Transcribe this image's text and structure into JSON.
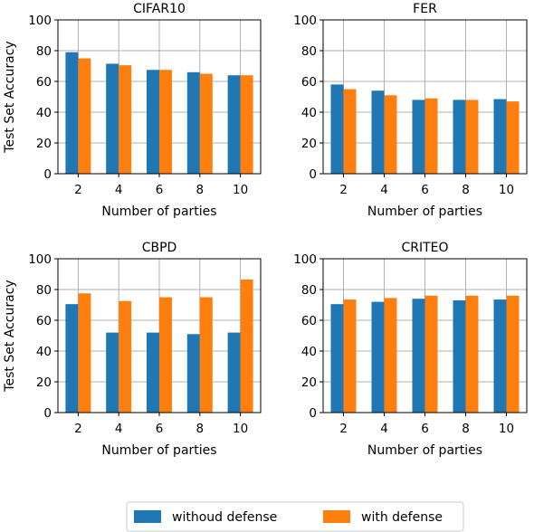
{
  "figure": {
    "legend": {
      "position": "bottom-center",
      "items": [
        {
          "label": "withoud defense",
          "color": "#1f77b4"
        },
        {
          "label": "with defense",
          "color": "#ff7f0e"
        }
      ]
    },
    "ylabel": "Test Set Accuracy",
    "xlabel": "Number of parties"
  },
  "chart_data": [
    {
      "type": "bar",
      "title": "CIFAR10",
      "categories": [
        "2",
        "4",
        "6",
        "8",
        "10"
      ],
      "xlabel": "Number of parties",
      "ylabel": "Test Set Accuracy",
      "ylim": [
        0,
        100
      ],
      "yticks": [
        0,
        20,
        40,
        60,
        80,
        100
      ],
      "grid": true,
      "series": [
        {
          "name": "withoud defense",
          "color": "#1f77b4",
          "values": [
            79,
            71.5,
            67.5,
            66,
            64
          ]
        },
        {
          "name": "with defense",
          "color": "#ff7f0e",
          "values": [
            75,
            70.5,
            67.5,
            65,
            64
          ]
        }
      ]
    },
    {
      "type": "bar",
      "title": "FER",
      "categories": [
        "2",
        "4",
        "6",
        "8",
        "10"
      ],
      "xlabel": "Number of parties",
      "ylabel": "",
      "ylim": [
        0,
        100
      ],
      "yticks": [
        0,
        20,
        40,
        60,
        80,
        100
      ],
      "grid": true,
      "series": [
        {
          "name": "withoud defense",
          "color": "#1f77b4",
          "values": [
            58,
            54,
            48,
            48,
            48.5
          ]
        },
        {
          "name": "with defense",
          "color": "#ff7f0e",
          "values": [
            55,
            51,
            49,
            48,
            47
          ]
        }
      ]
    },
    {
      "type": "bar",
      "title": "CBPD",
      "categories": [
        "2",
        "4",
        "6",
        "8",
        "10"
      ],
      "xlabel": "Number of parties",
      "ylabel": "Test Set Accuracy",
      "ylim": [
        0,
        100
      ],
      "yticks": [
        0,
        20,
        40,
        60,
        80,
        100
      ],
      "grid": true,
      "series": [
        {
          "name": "withoud defense",
          "color": "#1f77b4",
          "values": [
            70.5,
            52,
            52,
            51,
            52
          ]
        },
        {
          "name": "with defense",
          "color": "#ff7f0e",
          "values": [
            77.5,
            72.5,
            75,
            75,
            86.5
          ]
        }
      ]
    },
    {
      "type": "bar",
      "title": "CRITEO",
      "categories": [
        "2",
        "4",
        "6",
        "8",
        "10"
      ],
      "xlabel": "Number of parties",
      "ylabel": "",
      "ylim": [
        0,
        100
      ],
      "yticks": [
        0,
        20,
        40,
        60,
        80,
        100
      ],
      "grid": true,
      "series": [
        {
          "name": "withoud defense",
          "color": "#1f77b4",
          "values": [
            70.5,
            72,
            74,
            73,
            73.5
          ]
        },
        {
          "name": "with defense",
          "color": "#ff7f0e",
          "values": [
            73.5,
            74.5,
            76,
            76,
            76
          ]
        }
      ]
    }
  ]
}
